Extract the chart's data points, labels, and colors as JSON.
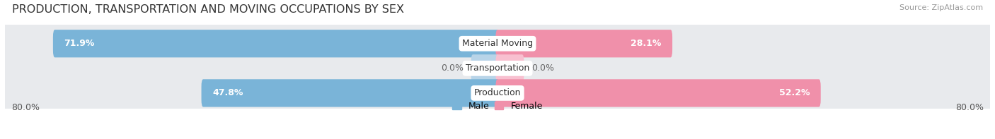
{
  "title": "PRODUCTION, TRANSPORTATION AND MOVING OCCUPATIONS BY SEX",
  "source_text": "Source: ZipAtlas.com",
  "categories": [
    "Material Moving",
    "Transportation",
    "Production"
  ],
  "male_values": [
    71.9,
    0.0,
    47.8
  ],
  "female_values": [
    28.1,
    0.0,
    52.2
  ],
  "male_color": "#7ab4d8",
  "female_color": "#f090aa",
  "male_color_light": "#b8d4e8",
  "female_color_light": "#f8c0d0",
  "male_label": "Male",
  "female_label": "Female",
  "axis_min": -80.0,
  "axis_max": 80.0,
  "axis_left_label": "80.0%",
  "axis_right_label": "80.0%",
  "bg_color": "#ffffff",
  "row_bg_color": "#e8eaed",
  "title_fontsize": 11.5,
  "label_fontsize": 9,
  "cat_fontsize": 9,
  "tick_fontsize": 9
}
